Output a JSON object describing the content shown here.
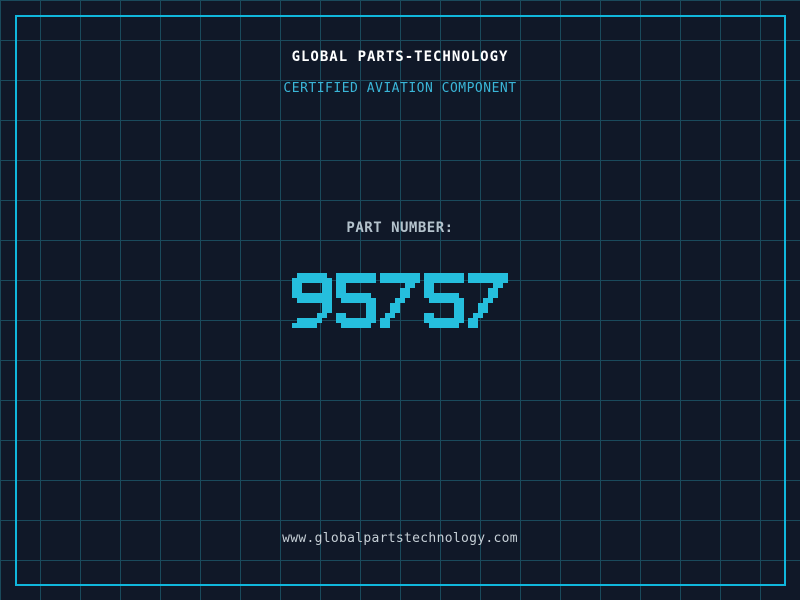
{
  "header": {
    "title": "GLOBAL PARTS-TECHNOLOGY",
    "subtitle": "CERTIFIED AVIATION COMPONENT"
  },
  "part": {
    "label": "PART NUMBER:",
    "number": "95757"
  },
  "footer": {
    "website": "www.globalpartstechnology.com"
  },
  "colors": {
    "background": "#101828",
    "grid_line": "#1a4a5c",
    "frame": "#10b6dc",
    "title_text": "#ffffff",
    "subtitle_text": "#3ab6d8",
    "label_text": "#b4c2cc",
    "digit": "#25bedd",
    "footer_text": "#c6cfd6"
  }
}
